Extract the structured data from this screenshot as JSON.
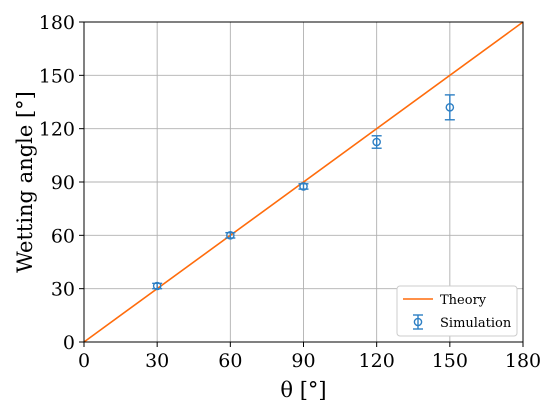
{
  "chart_data": {
    "type": "line",
    "xlabel": "θ [°]",
    "ylabel": "Wetting angle [°]",
    "xlim": [
      0,
      180
    ],
    "ylim": [
      0,
      180
    ],
    "xticks": [
      "0",
      "30",
      "60",
      "90",
      "120",
      "150",
      "180"
    ],
    "yticks": [
      "0",
      "30",
      "60",
      "90",
      "120",
      "150",
      "180"
    ],
    "grid": true,
    "legend_position": "bottom-right",
    "series": [
      {
        "name": "Theory",
        "kind": "line",
        "color": "#ff6c0c",
        "x": [
          0,
          180
        ],
        "y": [
          0,
          180
        ]
      },
      {
        "name": "Simulation",
        "kind": "errorbar",
        "color": "#2d7fc4",
        "x": [
          30,
          60,
          90,
          120,
          150
        ],
        "y": [
          31.5,
          60,
          87.5,
          112.5,
          132
        ],
        "yerr": [
          1.5,
          1.5,
          1.5,
          3.5,
          7
        ]
      }
    ]
  }
}
